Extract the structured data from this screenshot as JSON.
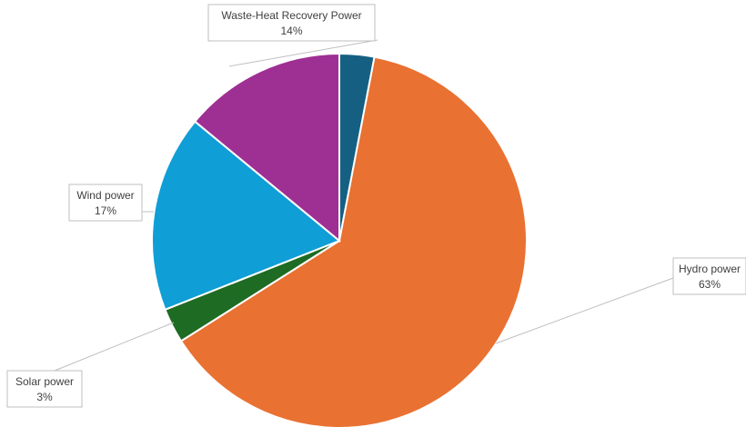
{
  "chart_data": {
    "type": "pie",
    "title": "",
    "slices": [
      {
        "label": "Waste-Heat Recovery Power",
        "value": 14,
        "display": "14%",
        "color": "#9e2f93"
      },
      {
        "label": "Hydro power",
        "value": 63,
        "display": "63%",
        "color": "#e97132"
      },
      {
        "label": "Solar power",
        "value": 3,
        "display": "3%",
        "color": "#1e6b24"
      },
      {
        "label": "Wind power",
        "value": 17,
        "display": "17%",
        "color": "#0f9ed5"
      },
      {
        "label": "",
        "value": 3,
        "display": "",
        "color": "#156082"
      }
    ],
    "legend": "none",
    "data_labels": "outside with leader lines"
  }
}
